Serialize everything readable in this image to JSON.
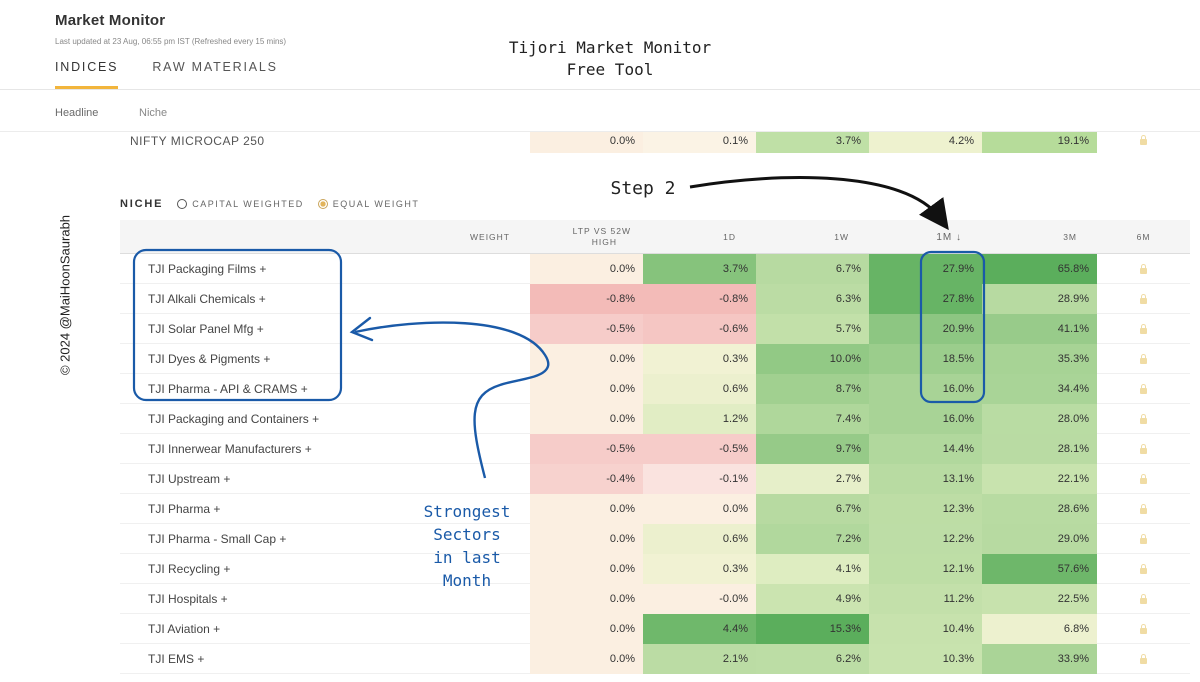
{
  "app": {
    "title": "Market Monitor",
    "updated": "Last updated at 23 Aug, 06:55 pm IST (Refreshed every 15 mins)"
  },
  "tabs": [
    {
      "label": "INDICES",
      "active": true
    },
    {
      "label": "RAW MATERIALS",
      "active": false
    }
  ],
  "subtabs": [
    {
      "label": "Headline",
      "active": true
    },
    {
      "label": "Niche",
      "active": false
    }
  ],
  "top_row": {
    "name": "NIFTY MICROCAP 250",
    "ltp": "0.0%",
    "d1": "0.1%",
    "w1": "3.7%",
    "m1": "4.2%",
    "m3": "19.1%"
  },
  "niche": {
    "title": "NICHE",
    "options": [
      {
        "label": "CAPITAL WEIGHTED",
        "selected": false
      },
      {
        "label": "EQUAL WEIGHT",
        "selected": true
      }
    ]
  },
  "columns": {
    "weight": "WEIGHT",
    "ltp_line1": "LTP VS 52W",
    "ltp_line2": "HIGH",
    "d1": "1D",
    "w1": "1W",
    "m1": "1M ↓",
    "m3": "3M",
    "m6": "6M"
  },
  "rows": [
    {
      "name": "TJI Packaging Films +",
      "ltp": "0.0%",
      "d1": "3.7%",
      "w1": "6.7%",
      "m1": "27.9%",
      "m3": "65.8%"
    },
    {
      "name": "TJI Alkali Chemicals +",
      "ltp": "-0.8%",
      "d1": "-0.8%",
      "w1": "6.3%",
      "m1": "27.8%",
      "m3": "28.9%"
    },
    {
      "name": "TJI Solar Panel Mfg +",
      "ltp": "-0.5%",
      "d1": "-0.6%",
      "w1": "5.7%",
      "m1": "20.9%",
      "m3": "41.1%"
    },
    {
      "name": "TJI Dyes & Pigments +",
      "ltp": "0.0%",
      "d1": "0.3%",
      "w1": "10.0%",
      "m1": "18.5%",
      "m3": "35.3%"
    },
    {
      "name": "TJI Pharma - API & CRAMS +",
      "ltp": "0.0%",
      "d1": "0.6%",
      "w1": "8.7%",
      "m1": "16.0%",
      "m3": "34.4%"
    },
    {
      "name": "TJI Packaging and Containers +",
      "ltp": "0.0%",
      "d1": "1.2%",
      "w1": "7.4%",
      "m1": "16.0%",
      "m3": "28.0%"
    },
    {
      "name": "TJI Innerwear Manufacturers +",
      "ltp": "-0.5%",
      "d1": "-0.5%",
      "w1": "9.7%",
      "m1": "14.4%",
      "m3": "28.1%"
    },
    {
      "name": "TJI Upstream +",
      "ltp": "-0.4%",
      "d1": "-0.1%",
      "w1": "2.7%",
      "m1": "13.1%",
      "m3": "22.1%"
    },
    {
      "name": "TJI Pharma +",
      "ltp": "0.0%",
      "d1": "0.0%",
      "w1": "6.7%",
      "m1": "12.3%",
      "m3": "28.6%"
    },
    {
      "name": "TJI Pharma - Small Cap +",
      "ltp": "0.0%",
      "d1": "0.6%",
      "w1": "7.2%",
      "m1": "12.2%",
      "m3": "29.0%"
    },
    {
      "name": "TJI Recycling +",
      "ltp": "0.0%",
      "d1": "0.3%",
      "w1": "4.1%",
      "m1": "12.1%",
      "m3": "57.6%"
    },
    {
      "name": "TJI Hospitals +",
      "ltp": "0.0%",
      "d1": "-0.0%",
      "w1": "4.9%",
      "m1": "11.2%",
      "m3": "22.5%"
    },
    {
      "name": "TJI Aviation +",
      "ltp": "0.0%",
      "d1": "4.4%",
      "w1": "15.3%",
      "m1": "10.4%",
      "m3": "6.8%"
    },
    {
      "name": "TJI EMS +",
      "ltp": "0.0%",
      "d1": "2.1%",
      "w1": "6.2%",
      "m1": "10.3%",
      "m3": "33.9%"
    }
  ],
  "annotations": {
    "title_line1": "Tijori Market Monitor",
    "title_line2": "Free Tool",
    "step": "Step 2",
    "strong_line1": "Strongest",
    "strong_line2": "Sectors",
    "strong_line3": "in last",
    "strong_line4": "Month",
    "watermark": "© 2024 @MaiHoonSaurabh"
  },
  "icons": {
    "lock": "lock-icon",
    "radio": "radio-icon"
  },
  "colors": {
    "accent": "#f2b53c",
    "annotation_blue": "#1a5aa8"
  }
}
